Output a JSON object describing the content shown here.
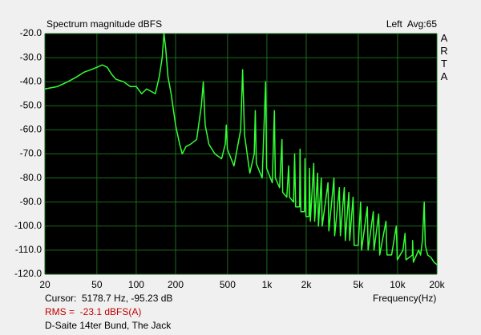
{
  "chart_data": {
    "type": "line",
    "title": "Spectrum magnitude dBFS",
    "channel_label": "Left  Avg:65",
    "brand": "ARTA",
    "x_label": "Frequency(Hz)",
    "cursor_text": "Cursor:  5178.7 Hz, -95.23 dB",
    "rms_text": "RMS =  -23.1 dBFS(A)",
    "caption": "D-Saite 14ter Bund, The Jack",
    "log_x": true,
    "grid": true,
    "color": "#33ff33",
    "grid_color": "#1d6b1d",
    "xlim": [
      20,
      20000
    ],
    "ylim": [
      -120,
      -20
    ],
    "xticks": [
      20,
      50,
      100,
      200,
      500,
      {
        "value": 1000,
        "label": "1k"
      },
      {
        "value": 2000,
        "label": "2k"
      },
      {
        "value": 5000,
        "label": "5k"
      },
      {
        "value": 10000,
        "label": "10k"
      },
      {
        "value": 20000,
        "label": "20k"
      }
    ],
    "yticks": [
      {
        "value": -20,
        "label": "-20.0"
      },
      {
        "value": -30,
        "label": "-30.0"
      },
      {
        "value": -40,
        "label": "-40.0"
      },
      {
        "value": -50,
        "label": "-50.0"
      },
      {
        "value": -60,
        "label": "-60.0"
      },
      {
        "value": -70,
        "label": "-70.0"
      },
      {
        "value": -80,
        "label": "-80.0"
      },
      {
        "value": -90,
        "label": "-90.0"
      },
      {
        "value": -100,
        "label": "-100.0"
      },
      {
        "value": -110,
        "label": "-110.0"
      },
      {
        "value": -120,
        "label": "-120.0"
      }
    ],
    "x": [
      20,
      25,
      30,
      35,
      40,
      45,
      50,
      55,
      60,
      65,
      70,
      80,
      90,
      100,
      110,
      120,
      130,
      140,
      150,
      158,
      163,
      168,
      175,
      185,
      200,
      215,
      225,
      240,
      260,
      290,
      315,
      326,
      337,
      360,
      400,
      450,
      480,
      489,
      498,
      560,
      630,
      652,
      674,
      740,
      800,
      815,
      830,
      920,
      978,
      995,
      1100,
      1141,
      1160,
      1250,
      1304,
      1320,
      1420,
      1467,
      1490,
      1600,
      1630,
      1660,
      1780,
      1793,
      1820,
      1940,
      1956,
      1990,
      2100,
      2119,
      2150,
      2282,
      2320,
      2445,
      2480,
      2608,
      2650,
      2934,
      2980,
      3260,
      3300,
      3586,
      3650,
      3912,
      3980,
      4238,
      4300,
      4564,
      4650,
      5000,
      5216,
      5300,
      5868,
      5950,
      6520,
      6600,
      7172,
      7300,
      8150,
      8300,
      9000,
      9780,
      9950,
      11000,
      11410,
      11600,
      13000,
      13040,
      13200,
      14500,
      15000,
      15500,
      16000,
      16300,
      17000,
      18000,
      19000,
      20000
    ],
    "values": [
      -43,
      -42,
      -40,
      -38,
      -36,
      -35,
      -34,
      -33,
      -34,
      -37,
      -39,
      -40,
      -42,
      -42,
      -45,
      -43,
      -44,
      -45,
      -38,
      -30,
      -20,
      -26,
      -38,
      -45,
      -58,
      -66,
      -70,
      -67,
      -66,
      -64,
      -50,
      -40,
      -58,
      -66,
      -70,
      -72,
      -66,
      -58,
      -68,
      -75,
      -60,
      -35,
      -62,
      -78,
      -70,
      -52,
      -74,
      -80,
      -40,
      -76,
      -82,
      -52,
      -80,
      -84,
      -64,
      -86,
      -88,
      -75,
      -88,
      -90,
      -70,
      -92,
      -92,
      -68,
      -94,
      -94,
      -72,
      -96,
      -96,
      -76,
      -98,
      -74,
      -98,
      -78,
      -100,
      -80,
      -100,
      -82,
      -102,
      -80,
      -104,
      -84,
      -104,
      -84,
      -106,
      -86,
      -106,
      -88,
      -108,
      -108,
      -90,
      -110,
      -92,
      -110,
      -94,
      -110,
      -95,
      -112,
      -98,
      -112,
      -112,
      -100,
      -114,
      -110,
      -103,
      -114,
      -112,
      -106,
      -115,
      -110,
      -112,
      -106,
      -90,
      -108,
      -112,
      -113,
      -115,
      -116
    ]
  }
}
